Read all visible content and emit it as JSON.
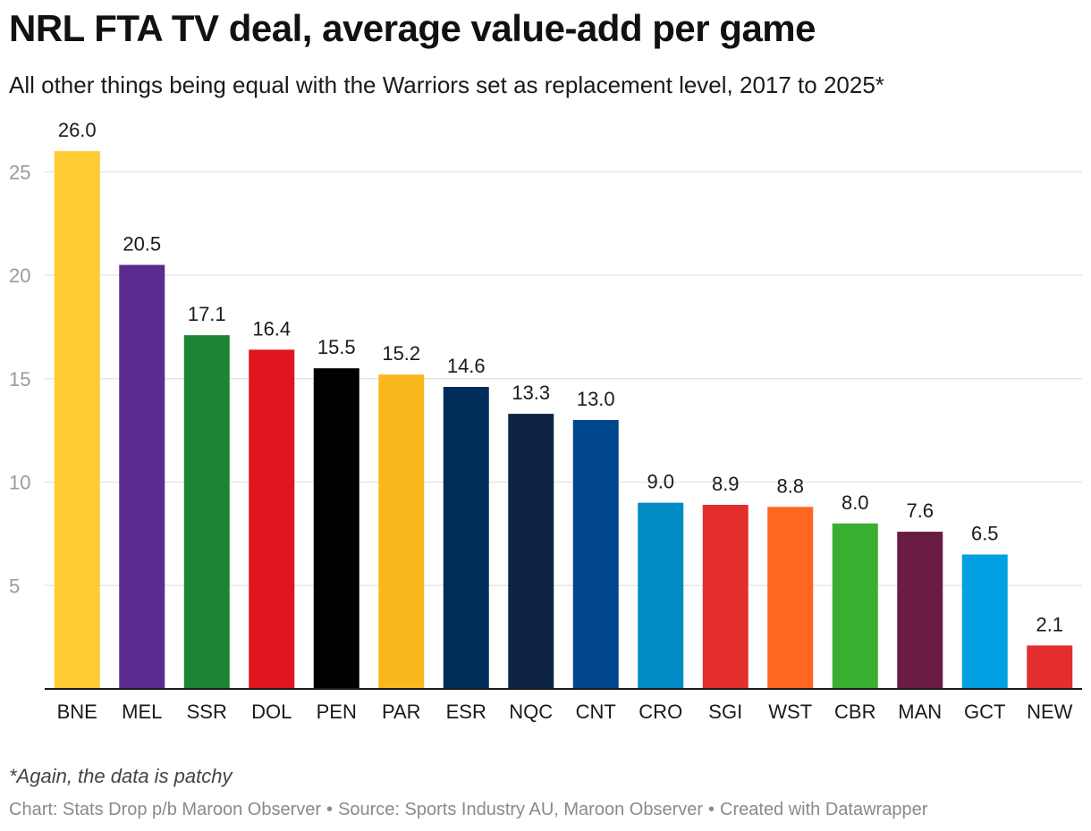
{
  "header": {
    "title": "NRL FTA TV deal, average value-add per game",
    "subtitle": "All other things being equal with the Warriors set as replacement level, 2017 to 2025*"
  },
  "footer": {
    "footnote": "*Again, the data is patchy",
    "credit_chart": "Chart: Stats Drop p/b Maroon Observer",
    "credit_source": "Source: Sports Industry AU, Maroon Observer",
    "credit_tool": "Created with Datawrapper",
    "separator": "•"
  },
  "chart_data": {
    "type": "bar",
    "title": "NRL FTA TV deal, average value-add per game",
    "subtitle": "All other things being equal with the Warriors set as replacement level, 2017 to 2025*",
    "xlabel": "",
    "ylabel": "",
    "ylim": [
      0,
      27
    ],
    "yticks": [
      5,
      10,
      15,
      20,
      25
    ],
    "grid": true,
    "legend": "none",
    "categories": [
      "BNE",
      "MEL",
      "SSR",
      "DOL",
      "PEN",
      "PAR",
      "ESR",
      "NQC",
      "CNT",
      "CRO",
      "SGI",
      "WST",
      "CBR",
      "MAN",
      "GCT",
      "NEW"
    ],
    "values": [
      26.0,
      20.5,
      17.1,
      16.4,
      15.5,
      15.2,
      14.6,
      13.3,
      13.0,
      9.0,
      8.9,
      8.8,
      8.0,
      7.6,
      6.5,
      2.1
    ],
    "value_labels": [
      "26.0",
      "20.5",
      "17.1",
      "16.4",
      "15.5",
      "15.2",
      "14.6",
      "13.3",
      "13.0",
      "9.0",
      "8.9",
      "8.8",
      "8.0",
      "7.6",
      "6.5",
      "2.1"
    ],
    "colors": [
      "#FFCC33",
      "#5B2C8F",
      "#1C8434",
      "#E0151E",
      "#000000",
      "#FBB81E",
      "#002C5A",
      "#0D2444",
      "#00468D",
      "#008BC4",
      "#E42E2E",
      "#FD671F",
      "#38AF31",
      "#6A1C44",
      "#00A0E2",
      "#E42E2E"
    ]
  }
}
